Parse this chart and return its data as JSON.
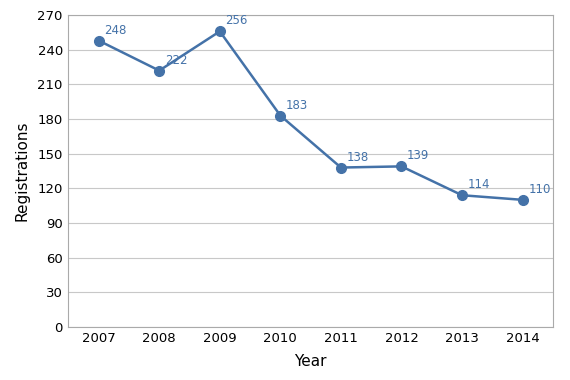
{
  "years": [
    2007,
    2008,
    2009,
    2010,
    2011,
    2012,
    2013,
    2014
  ],
  "values": [
    248,
    222,
    256,
    183,
    138,
    139,
    114,
    110
  ],
  "line_color": "#4472a8",
  "marker_color": "#4472a8",
  "ylabel": "Registrations",
  "xlabel": "Year",
  "ylim": [
    0,
    270
  ],
  "yticks": [
    0,
    30,
    60,
    90,
    120,
    150,
    180,
    210,
    240,
    270
  ],
  "label_color": "#4472a8",
  "label_fontsize": 8.5,
  "axis_label_fontsize": 11,
  "tick_fontsize": 9.5,
  "background_color": "#ffffff",
  "grid_color": "#c8c8c8",
  "spine_color": "#aaaaaa",
  "marker_size": 7,
  "line_width": 1.8
}
